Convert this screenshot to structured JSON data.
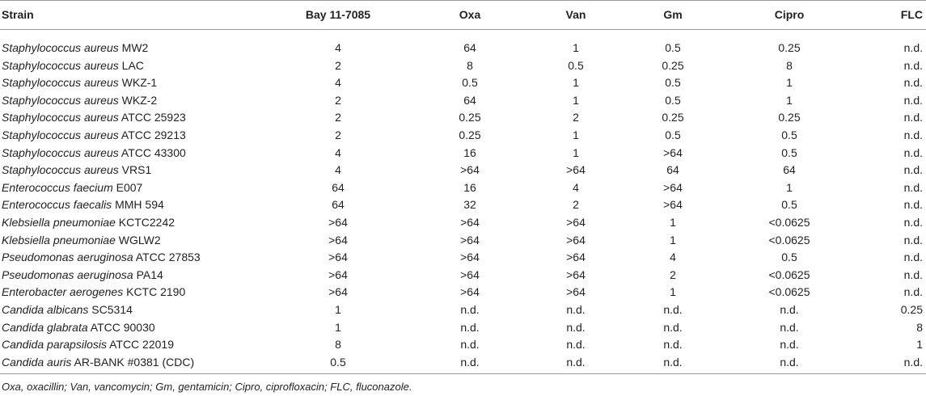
{
  "table": {
    "header": [
      "Strain",
      "Bay 11-7085",
      "Oxa",
      "Van",
      "Gm",
      "Cipro",
      "FLC"
    ],
    "rows": [
      {
        "species": "Staphylococcus aureus",
        "strain": "MW2",
        "values": [
          "4",
          "64",
          "1",
          "0.5",
          "0.25",
          "n.d."
        ]
      },
      {
        "species": "Staphylococcus aureus",
        "strain": "LAC",
        "values": [
          "2",
          "8",
          "0.5",
          "0.25",
          "8",
          "n.d."
        ]
      },
      {
        "species": "Staphylococcus aureus",
        "strain": "WKZ-1",
        "values": [
          "4",
          "0.5",
          "1",
          "0.5",
          "1",
          "n.d."
        ]
      },
      {
        "species": "Staphylococcus aureus",
        "strain": "WKZ-2",
        "values": [
          "2",
          "64",
          "1",
          "0.5",
          "1",
          "n.d."
        ]
      },
      {
        "species": "Staphylococcus aureus",
        "strain": "ATCC 25923",
        "values": [
          "2",
          "0.25",
          "2",
          "0.25",
          "0.25",
          "n.d."
        ]
      },
      {
        "species": "Staphylococcus aureus",
        "strain": "ATCC 29213",
        "values": [
          "2",
          "0.25",
          "1",
          "0.5",
          "0.5",
          "n.d."
        ]
      },
      {
        "species": "Staphylococcus aureus",
        "strain": "ATCC 43300",
        "values": [
          "4",
          "16",
          "1",
          ">64",
          "0.5",
          "n.d."
        ]
      },
      {
        "species": "Staphylococcus aureus",
        "strain": "VRS1",
        "values": [
          "4",
          ">64",
          ">64",
          "64",
          "64",
          "n.d."
        ]
      },
      {
        "species": "Enterococcus faecium",
        "strain": "E007",
        "values": [
          "64",
          "16",
          "4",
          ">64",
          "1",
          "n.d."
        ]
      },
      {
        "species": "Enterococcus faecalis",
        "strain": "MMH 594",
        "values": [
          "64",
          "32",
          "2",
          ">64",
          "0.5",
          "n.d."
        ]
      },
      {
        "species": "Klebsiella pneumoniae",
        "strain": "KCTC2242",
        "values": [
          ">64",
          ">64",
          ">64",
          "1",
          "<0.0625",
          "n.d."
        ]
      },
      {
        "species": "Klebsiella pneumoniae",
        "strain": "WGLW2",
        "values": [
          ">64",
          ">64",
          ">64",
          "1",
          "<0.0625",
          "n.d."
        ]
      },
      {
        "species": "Pseudomonas aeruginosa",
        "strain": "ATCC 27853",
        "values": [
          ">64",
          ">64",
          ">64",
          "4",
          "0.5",
          "n.d."
        ]
      },
      {
        "species": "Pseudomonas aeruginosa",
        "strain": "PA14",
        "values": [
          ">64",
          ">64",
          ">64",
          "2",
          "<0.0625",
          "n.d."
        ]
      },
      {
        "species": "Enterobacter aerogenes",
        "strain": "KCTC 2190",
        "values": [
          ">64",
          ">64",
          ">64",
          "1",
          "<0.0625",
          "n.d."
        ]
      },
      {
        "species": "Candida albicans",
        "strain": "SC5314",
        "values": [
          "1",
          "n.d.",
          "n.d.",
          "n.d.",
          "n.d.",
          "0.25"
        ]
      },
      {
        "species": "Candida glabrata",
        "strain": "ATCC 90030",
        "values": [
          "1",
          "n.d.",
          "n.d.",
          "n.d.",
          "n.d.",
          "8"
        ]
      },
      {
        "species": "Candida parapsilosis",
        "strain": "ATCC 22019",
        "values": [
          "8",
          "n.d.",
          "n.d.",
          "n.d.",
          "n.d.",
          "1"
        ]
      },
      {
        "species": "Candida auris",
        "strain": "AR-BANK #0381 (CDC)",
        "values": [
          "0.5",
          "n.d.",
          "n.d.",
          "n.d.",
          "n.d.",
          "n.d."
        ]
      }
    ],
    "footnote": "Oxa, oxacillin; Van, vancomycin; Gm, gentamicin; Cipro, ciprofloxacin; FLC, fluconazole."
  }
}
